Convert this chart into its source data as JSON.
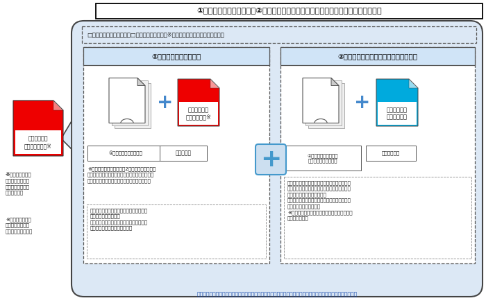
{
  "title": "①自医療機関等の申請等と②他の医療機関等への異動に伴う変更届を同時にする場合",
  "header_check": "□麻薬取扱者申請一覧　　□チェックシート　（※申請書とは別にご用意ください）",
  "left_title": "①自医療機関等の申請等",
  "right_title": "②他の医療機関等への異動に伴う変更届",
  "left_label1": "①自医療機関等の申請等",
  "left_label2": "免許交付用",
  "right_label1": "②　他の医療機関等へ\nの異動に伴う変更届等",
  "right_label2": "交付票送付用",
  "left_note1": "※免許交付を簡易書留（角2封筒に送料分の切手\nを貼付）で交付希望される場合、免許証の交付数\nにより送料が異なりますのでご注意ください。",
  "left_note2": "・自医療機関等の申請については、交付票\nは配布いたしません。\n・不備等がなければ、免許交付用の封筒に\nて、交付日に発送いたします。",
  "right_note": "・「交付票」については、審査が終了次第、手\n続きをした医療機関等へ、レターパックライト\n（青）を使用し送付します。\n・「交付票」が届いたら、異動先の医療機関等\nへ必ずお渡しください。\n※免許証については、異動先の医療機関等へ交\n付いたします。",
  "left_pack_label": "レターパック\nプラス（赤）※",
  "right_pack_label": "レターパック\nライト（青）",
  "side_pack_label": "レターパック\nプラス（赤）等※",
  "side_note1": "※書類一式をまと\nめて、郵送記録が\n残る方法で、御送\n付ください。",
  "side_note2": "※送付の際は「郵\n送申請」と大きく\n記載してください。",
  "bottom_note": "使用用途が異なりますので、レターパックプラス（赤）とレターパックライト（青）それぞれご用意ください。",
  "white": "#ffffff",
  "red": "#ee0000",
  "blue": "#00aadd",
  "outer_bg": "#dce8f5",
  "inner_bg": "#ffffff",
  "title_bar_bg": "#d0e4f7",
  "border_color": "#555555",
  "note_border": "#888888",
  "plus_color": "#4488cc",
  "big_plus_color": "#4499cc",
  "text_color": "#111111",
  "bottom_text_color": "#1144aa"
}
